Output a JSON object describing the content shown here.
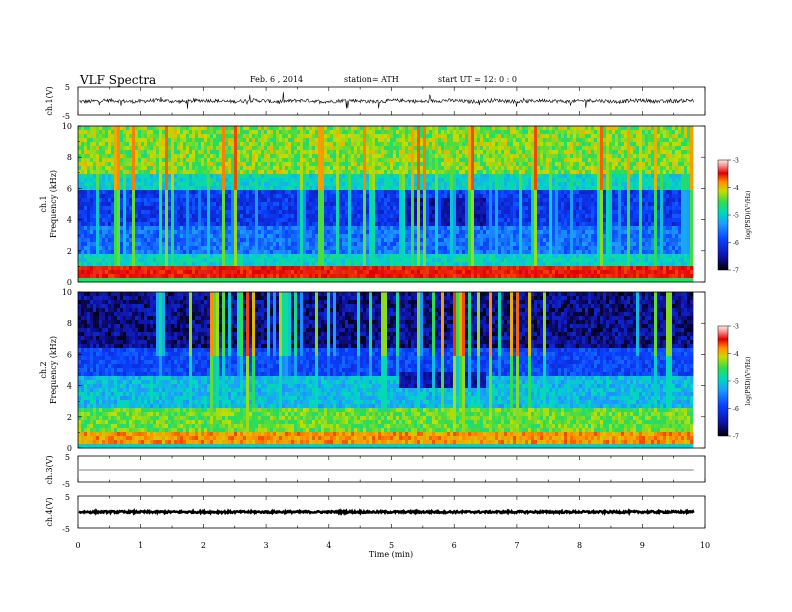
{
  "header": {
    "title": "VLF  Spectra",
    "date": "Feb. 6  , 2014",
    "station": "station= ATH",
    "start_ut": "start  UT  =    12: 0  : 0"
  },
  "chart_data": [
    {
      "type": "line",
      "panel": "ch1-waveform",
      "ylabel": "ch.1(V)",
      "ylim": [
        -5,
        5
      ],
      "yticks": [
        "5",
        "-5"
      ],
      "baseline": 0,
      "noise": "high"
    },
    {
      "type": "heatmap",
      "panel": "ch1-spectrogram",
      "ylabel": "ch.1\nFrequency (kHz)",
      "ylabel_line1": "ch.1",
      "ylabel_line2": "Frequency  (kHz)",
      "ylim": [
        0,
        10
      ],
      "yticks": [
        "0",
        "2",
        "4",
        "6",
        "8",
        "10"
      ],
      "colorbar": {
        "label": "log(PSD)(V²/Hz)",
        "range": [
          -7,
          -3
        ],
        "ticks": [
          "-3",
          "-4",
          "-5",
          "-6",
          "-7"
        ]
      },
      "features": [
        {
          "name": "low-frequency band",
          "freq_khz": [
            0.3,
            0.6
          ]
        },
        {
          "name": "quiet region",
          "time_min": [
            5.1,
            6.5
          ],
          "freq_khz": [
            3.5,
            5.5
          ]
        }
      ]
    },
    {
      "type": "heatmap",
      "panel": "ch2-spectrogram",
      "ylabel": "ch.2\nFrequency (kHz)",
      "ylabel_line1": "ch.2",
      "ylabel_line2": "Frequency  (kHz)",
      "ylim": [
        0,
        10
      ],
      "yticks": [
        "0",
        "2",
        "4",
        "6",
        "8",
        "10"
      ],
      "colorbar": {
        "label": "log(PSD)(V²/Hz)",
        "range": [
          -7,
          -3
        ],
        "ticks": [
          "-3",
          "-4",
          "-5",
          "-6",
          "-7"
        ]
      },
      "features": [
        {
          "name": "quiet region",
          "time_min": [
            5.1,
            6.5
          ],
          "freq_khz": [
            3.8,
            4.8
          ]
        }
      ]
    },
    {
      "type": "line",
      "panel": "ch3-waveform",
      "ylabel": "ch.3(V)",
      "ylim": [
        -5,
        5
      ],
      "yticks": [
        "5",
        "-5"
      ],
      "baseline": 0,
      "noise": "low"
    },
    {
      "type": "line",
      "panel": "ch4-waveform",
      "ylabel": "ch.4(V)",
      "ylim": [
        -5,
        5
      ],
      "yticks": [
        "5",
        "-5"
      ],
      "baseline": 0,
      "noise": "medium"
    }
  ],
  "x_axis": {
    "label": "Time  (min)",
    "range": [
      0,
      10
    ],
    "ticks": [
      "0",
      "1",
      "2",
      "3",
      "4",
      "5",
      "6",
      "7",
      "8",
      "9",
      "10"
    ],
    "data_end_min": 9.82
  },
  "colors": {
    "colormap": [
      "#000000",
      "#1a1aa0",
      "#0a3cff",
      "#1e90ff",
      "#00d2c8",
      "#32dc64",
      "#c8dc00",
      "#ff8c00",
      "#e60000",
      "#ffc8c8",
      "#ffffff"
    ]
  }
}
